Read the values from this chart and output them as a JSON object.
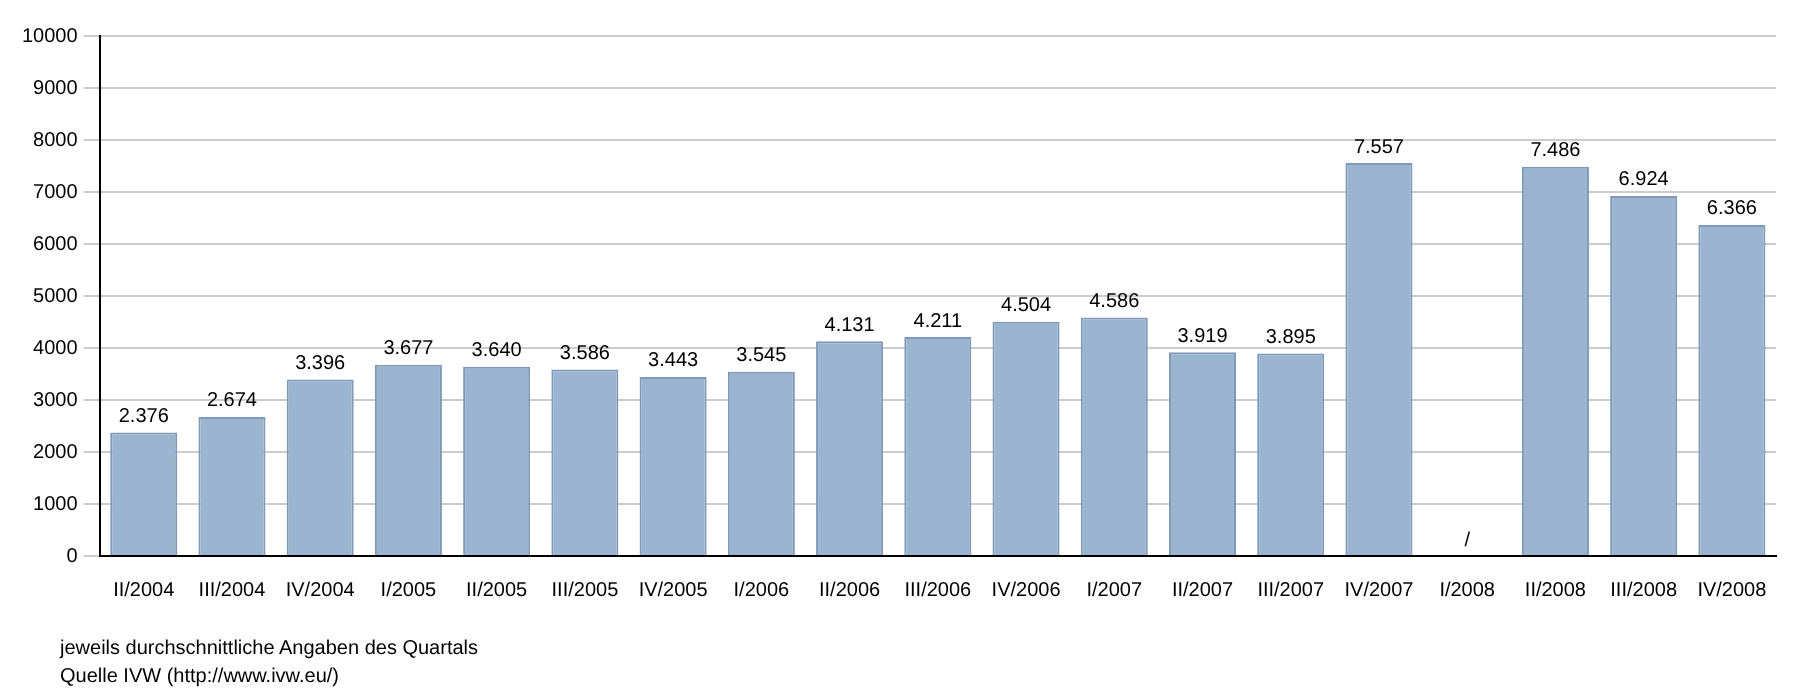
{
  "chart_data": {
    "type": "bar",
    "categories": [
      "II/2004",
      "III/2004",
      "IV/2004",
      "I/2005",
      "II/2005",
      "III/2005",
      "IV/2005",
      "I/2006",
      "II/2006",
      "III/2006",
      "IV/2006",
      "I/2007",
      "II/2007",
      "III/2007",
      "IV/2007",
      "I/2008",
      "II/2008",
      "III/2008",
      "IV/2008"
    ],
    "values": [
      2376,
      2674,
      3396,
      3677,
      3640,
      3586,
      3443,
      3545,
      4131,
      4211,
      4504,
      4586,
      3919,
      3895,
      7557,
      null,
      7486,
      6924,
      6366
    ],
    "value_labels": [
      "2.376",
      "2.674",
      "3.396",
      "3.677",
      "3.640",
      "3.586",
      "3.443",
      "3.545",
      "4.131",
      "4.211",
      "4.504",
      "4.586",
      "3.919",
      "3.895",
      "7.557",
      "/",
      "7.486",
      "6.924",
      "6.366"
    ],
    "color": "#9bb5d1",
    "ylim": [
      0,
      10000
    ],
    "yticks": [
      0,
      1000,
      2000,
      3000,
      4000,
      5000,
      6000,
      7000,
      8000,
      9000,
      10000
    ],
    "grid": "y",
    "legend": false,
    "annotations": [
      "jeweils durchschnittliche Angaben des Quartals",
      "Quelle IVW (http://www.ivw.eu/)"
    ]
  }
}
